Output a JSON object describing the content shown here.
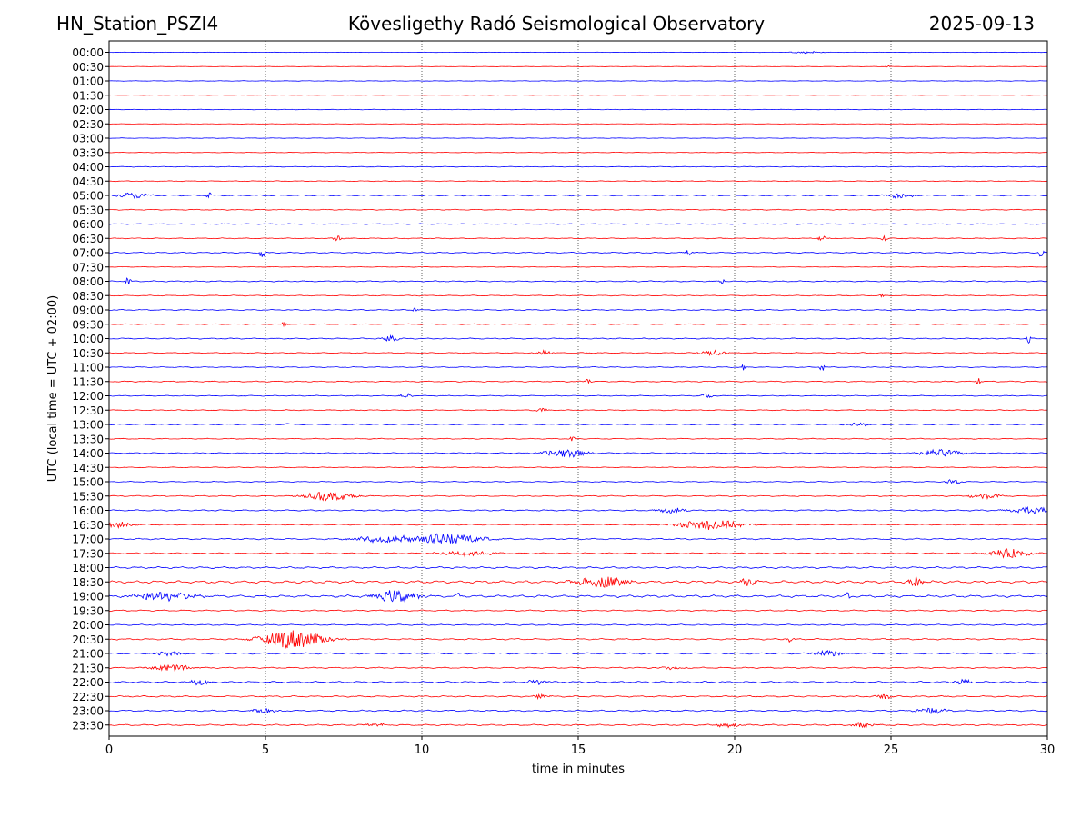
{
  "header": {
    "station": "HN_Station_PSZI4",
    "observatory": "Kövesligethy Radó Seismological Observatory",
    "date": "2025-09-13"
  },
  "chart_data": {
    "type": "line",
    "title": "Kövesligethy Radó Seismological Observatory",
    "xlabel": "time in minutes",
    "ylabel": "UTC (local time = UTC + 02:00)",
    "xlim": [
      0,
      30
    ],
    "x_ticks": [
      0,
      5,
      10,
      15,
      20,
      25,
      30
    ],
    "x_tick_labels": [
      "0",
      "5",
      "10",
      "15",
      "20",
      "25",
      "30"
    ],
    "grid": "vertical dotted at 5-minute ticks",
    "legend": "none",
    "colors": [
      "#0000ff",
      "#ff0000"
    ],
    "row_labels": [
      "00:00",
      "00:30",
      "01:00",
      "01:30",
      "02:00",
      "02:30",
      "03:00",
      "03:30",
      "04:00",
      "04:30",
      "05:00",
      "05:30",
      "06:00",
      "06:30",
      "07:00",
      "07:30",
      "08:00",
      "08:30",
      "09:00",
      "09:30",
      "10:00",
      "10:30",
      "11:00",
      "11:30",
      "12:00",
      "12:30",
      "13:00",
      "13:30",
      "14:00",
      "14:30",
      "15:00",
      "15:30",
      "16:00",
      "16:30",
      "17:00",
      "17:30",
      "18:00",
      "18:30",
      "19:00",
      "19:30",
      "20:00",
      "20:30",
      "21:00",
      "21:30",
      "22:00",
      "22:30",
      "23:00",
      "23:30"
    ],
    "noise_level": [
      0.2,
      0.2,
      0.3,
      0.2,
      0.3,
      0.2,
      0.3,
      0.3,
      0.4,
      0.4,
      0.7,
      0.5,
      0.5,
      0.5,
      0.6,
      0.3,
      0.6,
      0.5,
      0.6,
      0.5,
      0.6,
      0.5,
      0.5,
      0.6,
      0.5,
      0.5,
      0.6,
      0.5,
      0.6,
      0.5,
      0.5,
      0.6,
      0.7,
      0.6,
      0.8,
      0.7,
      1.0,
      1.4,
      1.3,
      0.7,
      0.7,
      0.8,
      0.8,
      0.7,
      0.9,
      0.8,
      0.8,
      0.8
    ],
    "events": [
      {
        "row": 0,
        "x": 22.3,
        "amp": 1.2,
        "dur": 0.6
      },
      {
        "row": 1,
        "x": 24.9,
        "amp": 1.5,
        "dur": 0.1
      },
      {
        "row": 10,
        "x": 0.8,
        "amp": 3,
        "dur": 0.6
      },
      {
        "row": 10,
        "x": 3.2,
        "amp": 3,
        "dur": 0.1
      },
      {
        "row": 10,
        "x": 25.3,
        "amp": 3,
        "dur": 0.5
      },
      {
        "row": 13,
        "x": 7.3,
        "amp": 3,
        "dur": 0.2
      },
      {
        "row": 13,
        "x": 22.8,
        "amp": 3,
        "dur": 0.2
      },
      {
        "row": 13,
        "x": 24.8,
        "amp": 4,
        "dur": 0.1
      },
      {
        "row": 14,
        "x": 4.9,
        "amp": 5,
        "dur": 0.15
      },
      {
        "row": 14,
        "x": 18.5,
        "amp": 3,
        "dur": 0.2
      },
      {
        "row": 14,
        "x": 29.8,
        "amp": 5,
        "dur": 0.1
      },
      {
        "row": 16,
        "x": 0.6,
        "amp": 5,
        "dur": 0.1
      },
      {
        "row": 16,
        "x": 19.6,
        "amp": 3,
        "dur": 0.1
      },
      {
        "row": 17,
        "x": 24.7,
        "amp": 3,
        "dur": 0.1
      },
      {
        "row": 18,
        "x": 9.8,
        "amp": 3,
        "dur": 0.1
      },
      {
        "row": 19,
        "x": 5.6,
        "amp": 3,
        "dur": 0.1
      },
      {
        "row": 20,
        "x": 9.0,
        "amp": 4,
        "dur": 0.3
      },
      {
        "row": 20,
        "x": 29.4,
        "amp": 5,
        "dur": 0.1
      },
      {
        "row": 21,
        "x": 13.9,
        "amp": 3,
        "dur": 0.3
      },
      {
        "row": 21,
        "x": 19.3,
        "amp": 3,
        "dur": 0.5
      },
      {
        "row": 22,
        "x": 20.3,
        "amp": 4,
        "dur": 0.1
      },
      {
        "row": 22,
        "x": 22.8,
        "amp": 5,
        "dur": 0.1
      },
      {
        "row": 23,
        "x": 15.3,
        "amp": 4,
        "dur": 0.1
      },
      {
        "row": 23,
        "x": 27.8,
        "amp": 4,
        "dur": 0.1
      },
      {
        "row": 24,
        "x": 9.5,
        "amp": 3,
        "dur": 0.2
      },
      {
        "row": 24,
        "x": 19.1,
        "amp": 4,
        "dur": 0.2
      },
      {
        "row": 25,
        "x": 13.8,
        "amp": 2,
        "dur": 0.3
      },
      {
        "row": 26,
        "x": 5.7,
        "amp": 3,
        "dur": 0.1
      },
      {
        "row": 26,
        "x": 24.0,
        "amp": 2,
        "dur": 0.5
      },
      {
        "row": 27,
        "x": 14.8,
        "amp": 3,
        "dur": 0.1
      },
      {
        "row": 28,
        "x": 14.6,
        "amp": 5,
        "dur": 0.8
      },
      {
        "row": 28,
        "x": 26.6,
        "amp": 4,
        "dur": 0.8
      },
      {
        "row": 30,
        "x": 27.0,
        "amp": 3,
        "dur": 0.3
      },
      {
        "row": 31,
        "x": 7.0,
        "amp": 5,
        "dur": 1.0
      },
      {
        "row": 31,
        "x": 28.0,
        "amp": 3,
        "dur": 0.6
      },
      {
        "row": 32,
        "x": 29.5,
        "amp": 4,
        "dur": 0.8
      },
      {
        "row": 32,
        "x": 18.0,
        "amp": 3,
        "dur": 0.5
      },
      {
        "row": 33,
        "x": 0.3,
        "amp": 3,
        "dur": 0.6
      },
      {
        "row": 33,
        "x": 19.2,
        "amp": 6,
        "dur": 1.2
      },
      {
        "row": 34,
        "x": 8.8,
        "amp": 4,
        "dur": 1.2
      },
      {
        "row": 34,
        "x": 10.7,
        "amp": 6,
        "dur": 1.4
      },
      {
        "row": 35,
        "x": 11.4,
        "amp": 3,
        "dur": 1.0
      },
      {
        "row": 35,
        "x": 28.8,
        "amp": 5,
        "dur": 0.8
      },
      {
        "row": 37,
        "x": 15.8,
        "amp": 6,
        "dur": 1.0
      },
      {
        "row": 37,
        "x": 20.5,
        "amp": 7,
        "dur": 0.3
      },
      {
        "row": 37,
        "x": 25.8,
        "amp": 6,
        "dur": 0.3
      },
      {
        "row": 38,
        "x": 1.8,
        "amp": 5,
        "dur": 1.2
      },
      {
        "row": 38,
        "x": 9.2,
        "amp": 7,
        "dur": 0.8
      },
      {
        "row": 38,
        "x": 11.2,
        "amp": 5,
        "dur": 0.1
      },
      {
        "row": 38,
        "x": 23.6,
        "amp": 5,
        "dur": 0.1
      },
      {
        "row": 41,
        "x": 5.9,
        "amp": 11,
        "dur": 1.2
      },
      {
        "row": 41,
        "x": 21.7,
        "amp": 4,
        "dur": 0.2
      },
      {
        "row": 42,
        "x": 1.9,
        "amp": 3,
        "dur": 0.5
      },
      {
        "row": 42,
        "x": 23.0,
        "amp": 3,
        "dur": 0.6
      },
      {
        "row": 43,
        "x": 2.0,
        "amp": 4,
        "dur": 0.8
      },
      {
        "row": 43,
        "x": 18.0,
        "amp": 2,
        "dur": 0.5
      },
      {
        "row": 44,
        "x": 2.9,
        "amp": 4,
        "dur": 0.4
      },
      {
        "row": 44,
        "x": 13.7,
        "amp": 3,
        "dur": 0.4
      },
      {
        "row": 44,
        "x": 27.3,
        "amp": 3,
        "dur": 0.4
      },
      {
        "row": 45,
        "x": 13.8,
        "amp": 3,
        "dur": 0.3
      },
      {
        "row": 45,
        "x": 24.8,
        "amp": 3,
        "dur": 0.3
      },
      {
        "row": 46,
        "x": 5.0,
        "amp": 3,
        "dur": 0.5
      },
      {
        "row": 46,
        "x": 26.3,
        "amp": 3,
        "dur": 0.6
      },
      {
        "row": 47,
        "x": 8.5,
        "amp": 3,
        "dur": 0.3
      },
      {
        "row": 47,
        "x": 19.8,
        "amp": 3,
        "dur": 0.4
      },
      {
        "row": 47,
        "x": 24.1,
        "amp": 3,
        "dur": 0.4
      }
    ]
  }
}
